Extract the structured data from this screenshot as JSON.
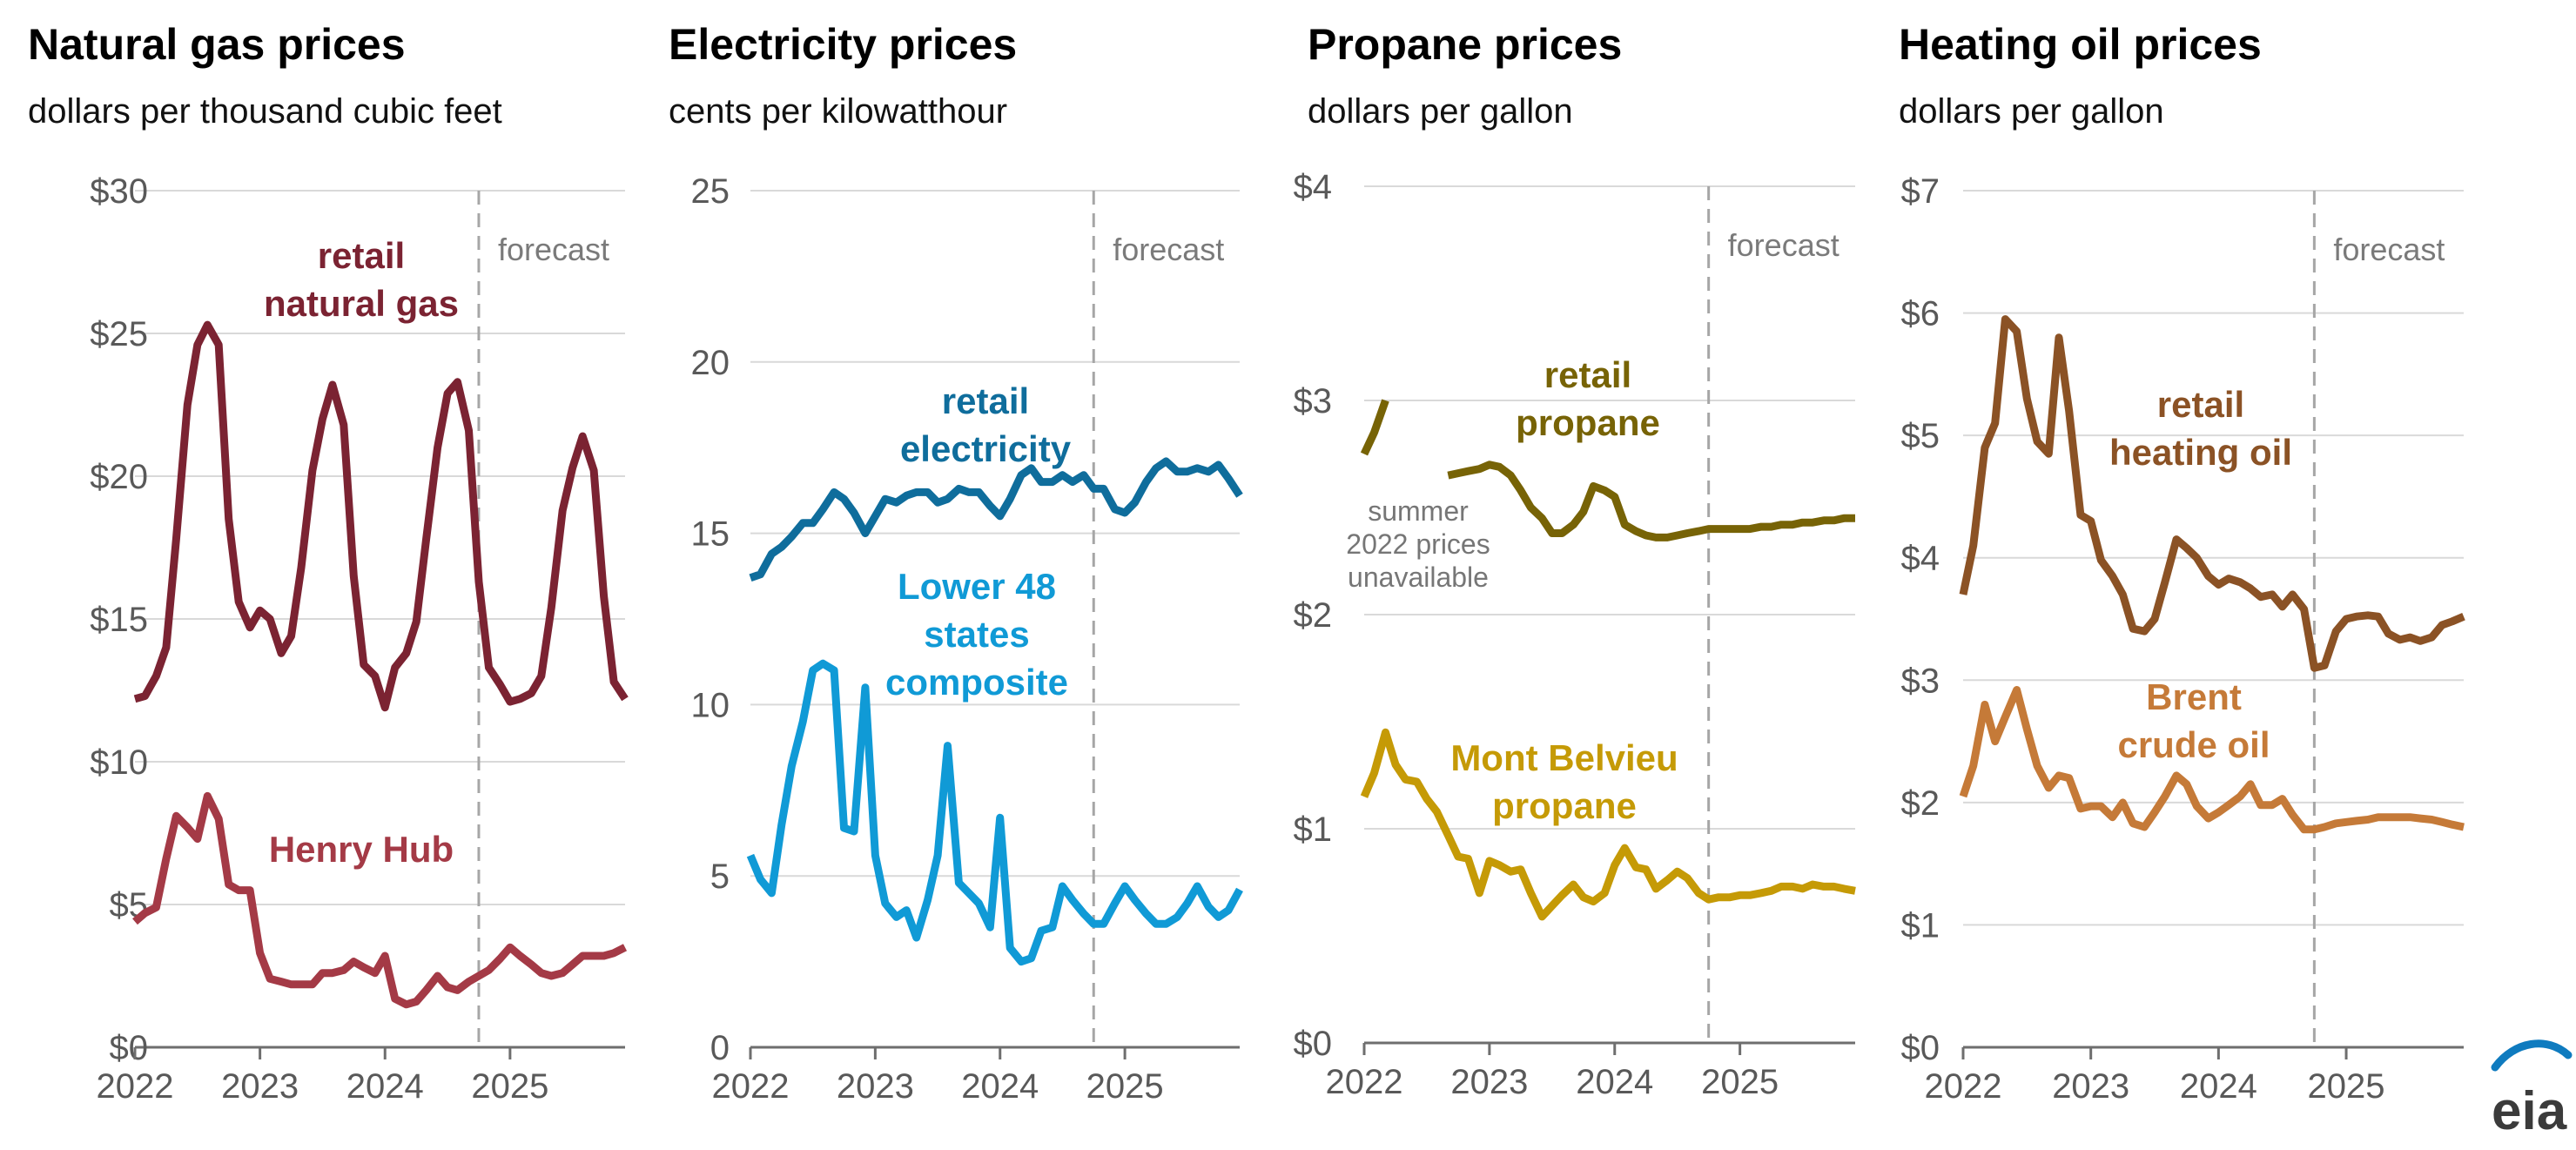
{
  "logo": {
    "text": "eia"
  },
  "chart_data": [
    {
      "type": "line",
      "title": "Natural gas prices",
      "subtitle": "dollars per thousand cubic feet",
      "ylim": [
        0,
        30
      ],
      "yticks": [
        0,
        5,
        10,
        15,
        20,
        25,
        30
      ],
      "ytick_labels": [
        "$0",
        "$5",
        "$10",
        "$15",
        "$20",
        "$25",
        "$30"
      ],
      "xlim": [
        2022,
        2025.92
      ],
      "xticks": [
        2022,
        2023,
        2024,
        2025
      ],
      "xtick_labels": [
        "2022",
        "2023",
        "2024",
        "2025"
      ],
      "forecast_start": 2024.75,
      "forecast_label": "forecast",
      "grid": true,
      "series": [
        {
          "name": "retail natural gas",
          "label_lines": [
            "retail",
            "natural gas"
          ],
          "color": "#7b2332",
          "x": [
            2022.0,
            2022.08,
            2022.17,
            2022.25,
            2022.33,
            2022.42,
            2022.5,
            2022.58,
            2022.67,
            2022.75,
            2022.83,
            2022.92,
            2023.0,
            2023.08,
            2023.17,
            2023.25,
            2023.33,
            2023.42,
            2023.5,
            2023.58,
            2023.67,
            2023.75,
            2023.83,
            2023.92,
            2024.0,
            2024.08,
            2024.17,
            2024.25,
            2024.33,
            2024.42,
            2024.5,
            2024.58,
            2024.67,
            2024.75,
            2024.83,
            2024.92,
            2025.0,
            2025.08,
            2025.17,
            2025.25,
            2025.33,
            2025.42,
            2025.5,
            2025.58,
            2025.67,
            2025.75,
            2025.83,
            2025.92
          ],
          "y": [
            12.2,
            12.3,
            13.0,
            14.0,
            17.8,
            22.5,
            24.6,
            25.3,
            24.6,
            18.5,
            15.6,
            14.7,
            15.3,
            15.0,
            13.8,
            14.4,
            16.8,
            20.2,
            22.0,
            23.2,
            21.8,
            16.5,
            13.4,
            13.0,
            11.9,
            13.3,
            13.8,
            14.9,
            17.8,
            21.0,
            22.9,
            23.3,
            21.6,
            16.3,
            13.3,
            12.7,
            12.1,
            12.2,
            12.4,
            13.0,
            15.4,
            18.8,
            20.3,
            21.4,
            20.2,
            15.8,
            12.8,
            12.2
          ]
        },
        {
          "name": "Henry Hub",
          "label_lines": [
            "Henry Hub"
          ],
          "color": "#a43a46",
          "x": [
            2022.0,
            2022.08,
            2022.17,
            2022.25,
            2022.33,
            2022.42,
            2022.5,
            2022.58,
            2022.67,
            2022.75,
            2022.83,
            2022.92,
            2023.0,
            2023.08,
            2023.17,
            2023.25,
            2023.33,
            2023.42,
            2023.5,
            2023.58,
            2023.67,
            2023.75,
            2023.83,
            2023.92,
            2024.0,
            2024.08,
            2024.17,
            2024.25,
            2024.33,
            2024.42,
            2024.5,
            2024.58,
            2024.67,
            2024.75,
            2024.83,
            2024.92,
            2025.0,
            2025.08,
            2025.17,
            2025.25,
            2025.33,
            2025.42,
            2025.5,
            2025.58,
            2025.67,
            2025.75,
            2025.83,
            2025.92
          ],
          "y": [
            4.4,
            4.7,
            4.9,
            6.6,
            8.1,
            7.7,
            7.3,
            8.8,
            8.0,
            5.7,
            5.5,
            5.5,
            3.3,
            2.4,
            2.3,
            2.2,
            2.2,
            2.2,
            2.6,
            2.6,
            2.7,
            3.0,
            2.8,
            2.6,
            3.2,
            1.7,
            1.5,
            1.6,
            2.0,
            2.5,
            2.1,
            2.0,
            2.3,
            2.5,
            2.7,
            3.1,
            3.5,
            3.2,
            2.9,
            2.6,
            2.5,
            2.6,
            2.9,
            3.2,
            3.2,
            3.2,
            3.3,
            3.5
          ]
        }
      ]
    },
    {
      "type": "line",
      "title": "Electricity prices",
      "subtitle": "cents per kilowatthour",
      "ylim": [
        0,
        25
      ],
      "yticks": [
        0,
        5,
        10,
        15,
        20,
        25
      ],
      "ytick_labels": [
        "0",
        "5",
        "10",
        "15",
        "20",
        "25"
      ],
      "xlim": [
        2022,
        2025.92
      ],
      "xticks": [
        2022,
        2023,
        2024,
        2025
      ],
      "xtick_labels": [
        "2022",
        "2023",
        "2024",
        "2025"
      ],
      "forecast_start": 2024.75,
      "forecast_label": "forecast",
      "grid": true,
      "series": [
        {
          "name": "retail electricity",
          "label_lines": [
            "retail",
            "electricity"
          ],
          "color": "#0f6d9c",
          "x": [
            2022.0,
            2022.08,
            2022.17,
            2022.25,
            2022.33,
            2022.42,
            2022.5,
            2022.58,
            2022.67,
            2022.75,
            2022.83,
            2022.92,
            2023.0,
            2023.08,
            2023.17,
            2023.25,
            2023.33,
            2023.42,
            2023.5,
            2023.58,
            2023.67,
            2023.75,
            2023.83,
            2023.92,
            2024.0,
            2024.08,
            2024.17,
            2024.25,
            2024.33,
            2024.42,
            2024.5,
            2024.58,
            2024.67,
            2024.75,
            2024.83,
            2024.92,
            2025.0,
            2025.08,
            2025.17,
            2025.25,
            2025.33,
            2025.42,
            2025.5,
            2025.58,
            2025.67,
            2025.75,
            2025.83,
            2025.92
          ],
          "y": [
            13.7,
            13.8,
            14.4,
            14.6,
            14.9,
            15.3,
            15.3,
            15.7,
            16.2,
            16.0,
            15.6,
            15.0,
            15.5,
            16.0,
            15.9,
            16.1,
            16.2,
            16.2,
            15.9,
            16.0,
            16.3,
            16.2,
            16.2,
            15.8,
            15.5,
            16.0,
            16.7,
            16.9,
            16.5,
            16.5,
            16.7,
            16.5,
            16.7,
            16.3,
            16.3,
            15.7,
            15.6,
            15.9,
            16.5,
            16.9,
            17.1,
            16.8,
            16.8,
            16.9,
            16.8,
            17.0,
            16.6,
            16.1
          ]
        },
        {
          "name": "Lower 48 states composite",
          "label_lines": [
            "Lower 48",
            "states",
            "composite"
          ],
          "color": "#109ad6",
          "x": [
            2022.0,
            2022.08,
            2022.17,
            2022.25,
            2022.33,
            2022.42,
            2022.5,
            2022.58,
            2022.67,
            2022.75,
            2022.83,
            2022.92,
            2023.0,
            2023.08,
            2023.17,
            2023.25,
            2023.33,
            2023.42,
            2023.5,
            2023.58,
            2023.67,
            2023.75,
            2023.83,
            2023.92,
            2024.0,
            2024.08,
            2024.17,
            2024.25,
            2024.33,
            2024.42,
            2024.5,
            2024.58,
            2024.67,
            2024.75,
            2024.83,
            2024.92,
            2025.0,
            2025.08,
            2025.17,
            2025.25,
            2025.33,
            2025.42,
            2025.5,
            2025.58,
            2025.67,
            2025.75,
            2025.83,
            2025.92
          ],
          "y": [
            5.6,
            4.9,
            4.5,
            6.5,
            8.2,
            9.5,
            11.0,
            11.2,
            11.0,
            6.4,
            6.3,
            10.5,
            5.6,
            4.2,
            3.8,
            4.0,
            3.2,
            4.3,
            5.6,
            8.8,
            4.8,
            4.5,
            4.2,
            3.5,
            6.7,
            2.9,
            2.5,
            2.6,
            3.4,
            3.5,
            4.7,
            4.3,
            3.9,
            3.6,
            3.6,
            4.2,
            4.7,
            4.3,
            3.9,
            3.6,
            3.6,
            3.8,
            4.2,
            4.7,
            4.1,
            3.8,
            4.0,
            4.6
          ]
        }
      ]
    },
    {
      "type": "line",
      "title": "Propane prices",
      "subtitle": "dollars per gallon",
      "ylim": [
        0,
        4
      ],
      "yticks": [
        0,
        1,
        2,
        3,
        4
      ],
      "ytick_labels": [
        "$0",
        "$1",
        "$2",
        "$3",
        "$4"
      ],
      "xlim": [
        2022,
        2025.92
      ],
      "xticks": [
        2022,
        2023,
        2024,
        2025
      ],
      "xtick_labels": [
        "2022",
        "2023",
        "2024",
        "2025"
      ],
      "forecast_start": 2024.75,
      "forecast_label": "forecast",
      "grid": true,
      "annotation": [
        "summer",
        "2022 prices",
        "unavailable"
      ],
      "series": [
        {
          "name": "retail propane",
          "label_lines": [
            "retail",
            "propane"
          ],
          "color": "#776306",
          "x": [
            2022.0,
            2022.08,
            2022.17,
            null,
            2022.67,
            2022.75,
            2022.83,
            2022.92,
            2023.0,
            2023.08,
            2023.17,
            2023.25,
            2023.33,
            2023.42,
            2023.5,
            2023.58,
            2023.67,
            2023.75,
            2023.83,
            2023.92,
            2024.0,
            2024.08,
            2024.17,
            2024.25,
            2024.33,
            2024.42,
            2024.5,
            2024.58,
            2024.67,
            2024.75,
            2024.83,
            2024.92,
            2025.0,
            2025.08,
            2025.17,
            2025.25,
            2025.33,
            2025.42,
            2025.5,
            2025.58,
            2025.67,
            2025.75,
            2025.83,
            2025.92
          ],
          "y": [
            2.75,
            2.85,
            3.0,
            null,
            2.65,
            2.66,
            2.67,
            2.68,
            2.7,
            2.69,
            2.65,
            2.58,
            2.5,
            2.45,
            2.38,
            2.38,
            2.42,
            2.48,
            2.6,
            2.58,
            2.55,
            2.42,
            2.39,
            2.37,
            2.36,
            2.36,
            2.37,
            2.38,
            2.39,
            2.4,
            2.4,
            2.4,
            2.4,
            2.4,
            2.41,
            2.41,
            2.42,
            2.42,
            2.43,
            2.43,
            2.44,
            2.44,
            2.45,
            2.45
          ]
        },
        {
          "name": "Mont Belvieu propane",
          "label_lines": [
            "Mont Belvieu",
            "propane"
          ],
          "color": "#c59a06",
          "x": [
            2022.0,
            2022.08,
            2022.17,
            2022.25,
            2022.33,
            2022.42,
            2022.5,
            2022.58,
            2022.67,
            2022.75,
            2022.83,
            2022.92,
            2023.0,
            2023.08,
            2023.17,
            2023.25,
            2023.33,
            2023.42,
            2023.5,
            2023.58,
            2023.67,
            2023.75,
            2023.83,
            2023.92,
            2024.0,
            2024.08,
            2024.17,
            2024.25,
            2024.33,
            2024.42,
            2024.5,
            2024.58,
            2024.67,
            2024.75,
            2024.83,
            2024.92,
            2025.0,
            2025.08,
            2025.17,
            2025.25,
            2025.33,
            2025.42,
            2025.5,
            2025.58,
            2025.67,
            2025.75,
            2025.83,
            2025.92
          ],
          "y": [
            1.15,
            1.26,
            1.45,
            1.3,
            1.23,
            1.22,
            1.14,
            1.08,
            0.97,
            0.87,
            0.86,
            0.7,
            0.85,
            0.83,
            0.8,
            0.81,
            0.7,
            0.59,
            0.64,
            0.69,
            0.74,
            0.68,
            0.66,
            0.7,
            0.83,
            0.91,
            0.82,
            0.81,
            0.72,
            0.76,
            0.8,
            0.77,
            0.7,
            0.67,
            0.68,
            0.68,
            0.69,
            0.69,
            0.7,
            0.71,
            0.73,
            0.73,
            0.72,
            0.74,
            0.73,
            0.73,
            0.72,
            0.71
          ]
        }
      ]
    },
    {
      "type": "line",
      "title": "Heating oil prices",
      "subtitle": "dollars per gallon",
      "ylim": [
        0,
        7
      ],
      "yticks": [
        0,
        1,
        2,
        3,
        4,
        5,
        6,
        7
      ],
      "ytick_labels": [
        "$0",
        "$1",
        "$2",
        "$3",
        "$4",
        "$5",
        "$6",
        "$7"
      ],
      "xlim": [
        2022,
        2025.92
      ],
      "xticks": [
        2022,
        2023,
        2024,
        2025
      ],
      "xtick_labels": [
        "2022",
        "2023",
        "2024",
        "2025"
      ],
      "forecast_start": 2024.75,
      "forecast_label": "forecast",
      "grid": true,
      "series": [
        {
          "name": "retail heating oil",
          "label_lines": [
            "retail",
            "heating oil"
          ],
          "color": "#8b5225",
          "x": [
            2022.0,
            2022.08,
            2022.17,
            2022.25,
            2022.33,
            2022.42,
            2022.5,
            2022.58,
            2022.67,
            2022.75,
            2022.83,
            2022.92,
            2023.0,
            2023.08,
            2023.17,
            2023.25,
            2023.33,
            2023.42,
            2023.5,
            2023.58,
            2023.67,
            2023.75,
            2023.83,
            2023.92,
            2024.0,
            2024.08,
            2024.17,
            2024.25,
            2024.33,
            2024.42,
            2024.5,
            2024.58,
            2024.67,
            2024.75,
            2024.83,
            2024.92,
            2025.0,
            2025.08,
            2025.17,
            2025.25,
            2025.33,
            2025.42,
            2025.5,
            2025.58,
            2025.67,
            2025.75,
            2025.83,
            2025.92
          ],
          "y": [
            3.7,
            4.1,
            4.9,
            5.1,
            5.95,
            5.85,
            5.3,
            4.95,
            4.85,
            5.8,
            5.2,
            4.35,
            4.3,
            3.98,
            3.85,
            3.7,
            3.42,
            3.4,
            3.5,
            3.8,
            4.15,
            4.08,
            4.0,
            3.85,
            3.78,
            3.83,
            3.8,
            3.75,
            3.68,
            3.7,
            3.6,
            3.7,
            3.58,
            3.1,
            3.12,
            3.4,
            3.5,
            3.52,
            3.53,
            3.52,
            3.38,
            3.33,
            3.35,
            3.32,
            3.35,
            3.45,
            3.48,
            3.52
          ]
        },
        {
          "name": "Brent crude oil",
          "label_lines": [
            "Brent",
            "crude oil"
          ],
          "color": "#c57a38",
          "x": [
            2022.0,
            2022.08,
            2022.17,
            2022.25,
            2022.33,
            2022.42,
            2022.5,
            2022.58,
            2022.67,
            2022.75,
            2022.83,
            2022.92,
            2023.0,
            2023.08,
            2023.17,
            2023.25,
            2023.33,
            2023.42,
            2023.5,
            2023.58,
            2023.67,
            2023.75,
            2023.83,
            2023.92,
            2024.0,
            2024.08,
            2024.17,
            2024.25,
            2024.33,
            2024.42,
            2024.5,
            2024.58,
            2024.67,
            2024.75,
            2024.83,
            2024.92,
            2025.0,
            2025.08,
            2025.17,
            2025.25,
            2025.33,
            2025.42,
            2025.5,
            2025.58,
            2025.67,
            2025.75,
            2025.83,
            2025.92
          ],
          "y": [
            2.05,
            2.3,
            2.8,
            2.5,
            2.7,
            2.92,
            2.6,
            2.3,
            2.12,
            2.22,
            2.2,
            1.95,
            1.97,
            1.97,
            1.88,
            2.0,
            1.83,
            1.8,
            1.92,
            2.05,
            2.22,
            2.15,
            1.97,
            1.87,
            1.92,
            1.98,
            2.05,
            2.15,
            1.98,
            1.98,
            2.03,
            1.9,
            1.78,
            1.78,
            1.8,
            1.83,
            1.84,
            1.85,
            1.86,
            1.88,
            1.88,
            1.88,
            1.88,
            1.87,
            1.86,
            1.84,
            1.82,
            1.8
          ]
        }
      ]
    }
  ]
}
